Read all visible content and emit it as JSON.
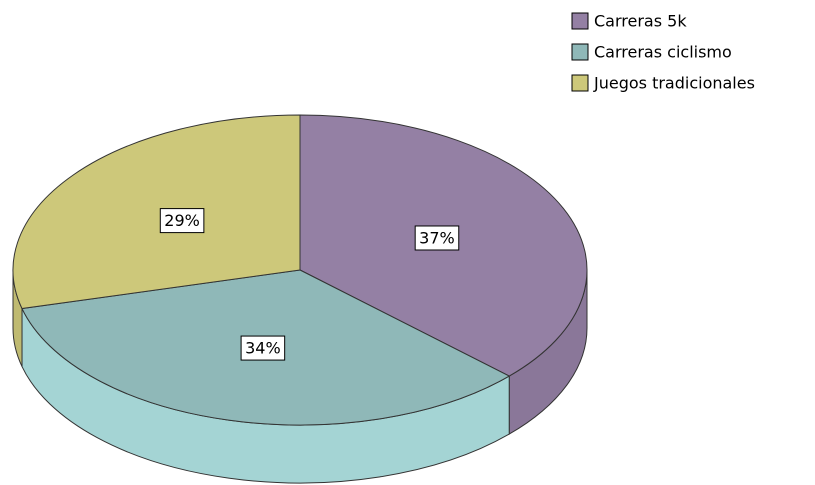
{
  "chart_data": {
    "type": "pie",
    "categories": [
      "Carreras 5k",
      "Carreras ciclismo",
      "Juegos tradicionales"
    ],
    "values": [
      37,
      34,
      29
    ],
    "value_labels": [
      "37%",
      "34%",
      "29%"
    ],
    "colors": [
      "#9480a4",
      "#8fb8b8",
      "#cdc87a"
    ]
  }
}
